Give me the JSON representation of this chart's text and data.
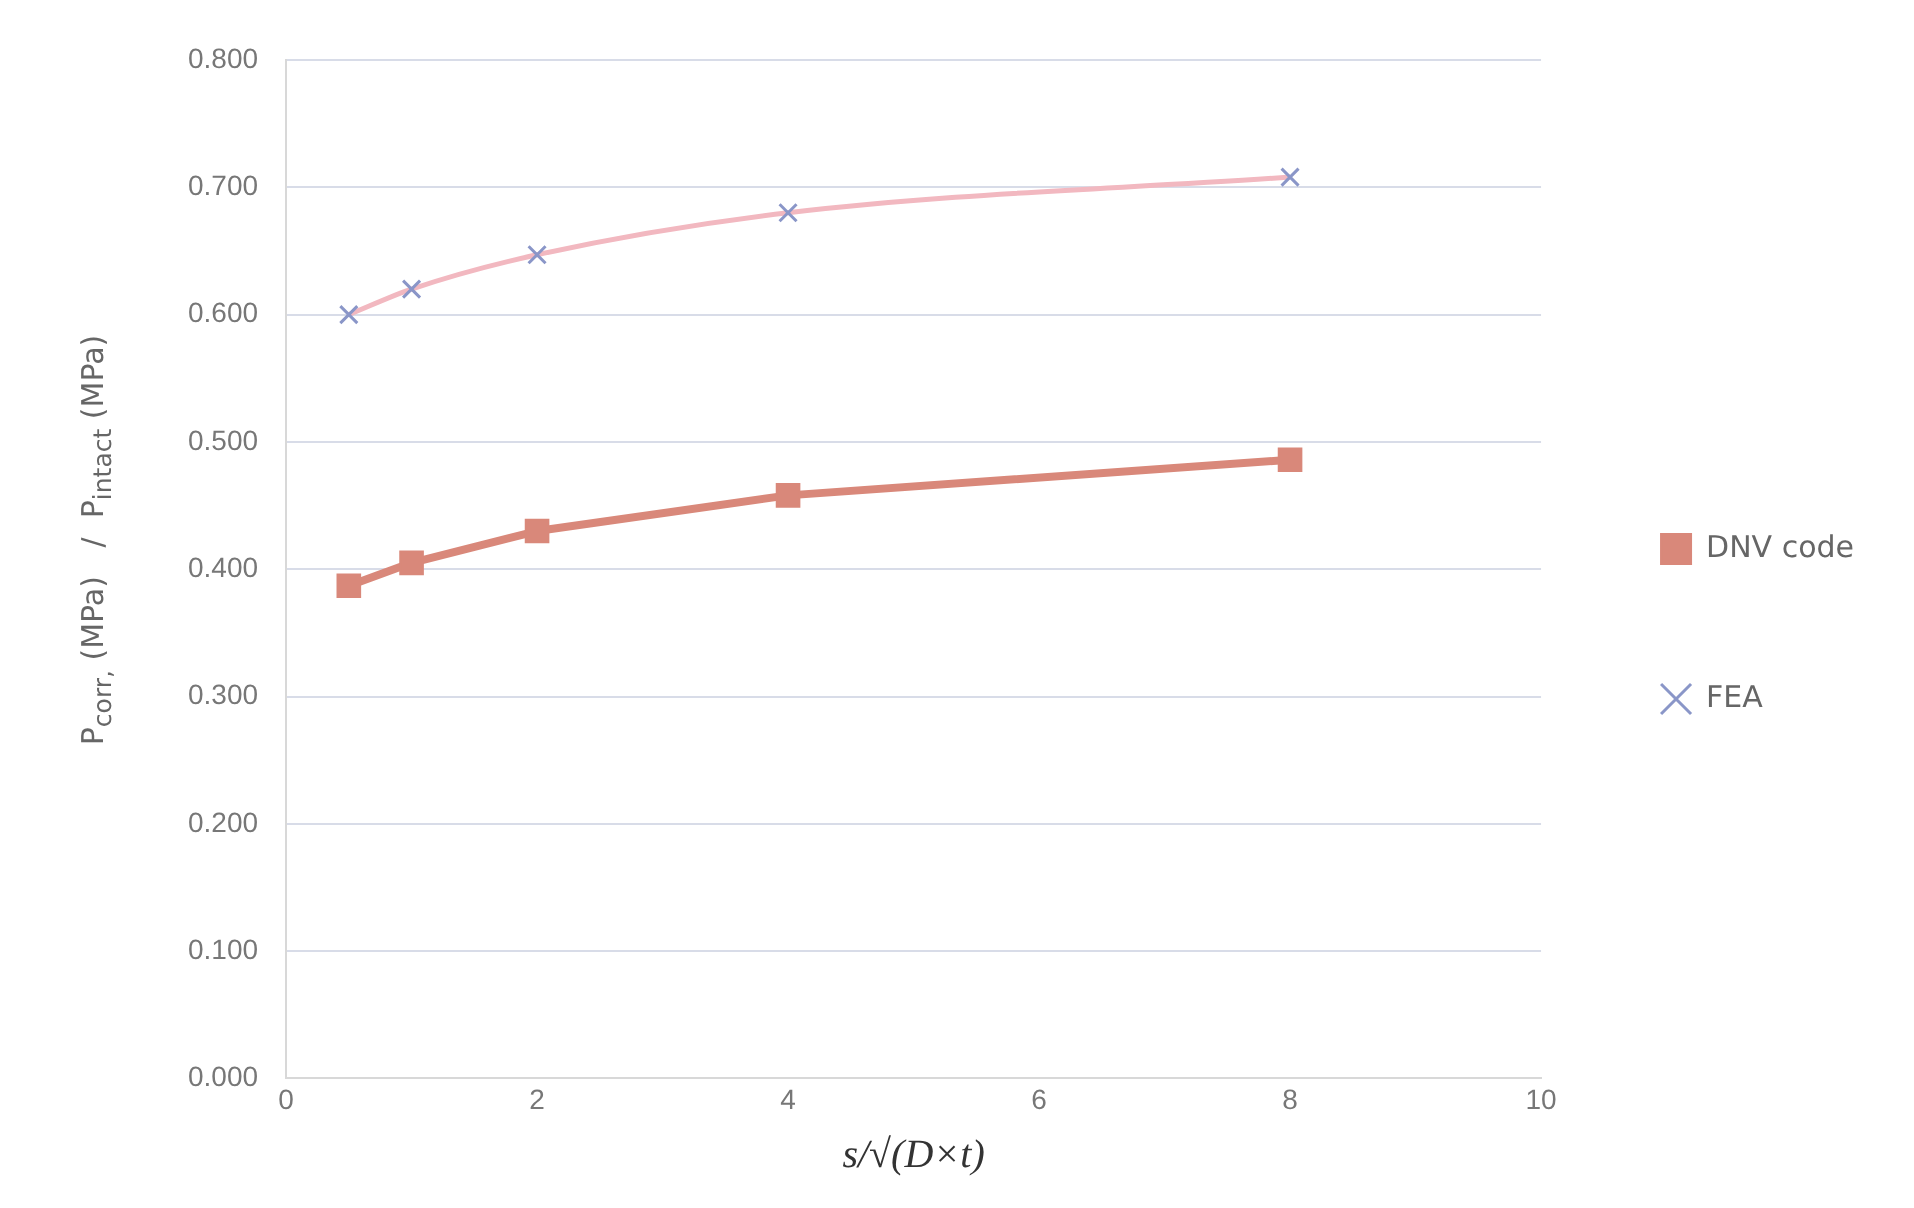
{
  "chart_data": {
    "type": "line",
    "xlabel": "s/√(D×t)",
    "ylabel": "P$_{corr,}$ (MPa)   /  P$_{intact}$ (MPa)",
    "x": [
      0.5,
      1,
      2,
      4,
      8
    ],
    "series": [
      {
        "name": "DNV code",
        "color": "#d9887a",
        "marker": "square",
        "values": [
          0.387,
          0.405,
          0.43,
          0.458,
          0.486
        ]
      },
      {
        "name": "FEA",
        "color": "#f2b8c0",
        "marker": "cross",
        "values": [
          0.6,
          0.62,
          0.647,
          0.68,
          0.708
        ]
      }
    ],
    "xlim": [
      0,
      10
    ],
    "xticks": [
      0,
      2,
      4,
      6,
      8,
      10
    ],
    "ylim": [
      0,
      0.8
    ],
    "yticks": [
      {
        "value": 0,
        "label": "0.000"
      },
      {
        "value": 0.1,
        "label": "0.100"
      },
      {
        "value": 0.2,
        "label": "0.200"
      },
      {
        "value": 0.3,
        "label": "0.300"
      },
      {
        "value": 0.4,
        "label": "0.400"
      },
      {
        "value": 0.5,
        "label": "0.500"
      },
      {
        "value": 0.6,
        "label": "0.600"
      },
      {
        "value": 0.7,
        "label": "0.700"
      },
      {
        "value": 0.8,
        "label": "0.800"
      }
    ],
    "grid": "y",
    "legend": "right"
  }
}
